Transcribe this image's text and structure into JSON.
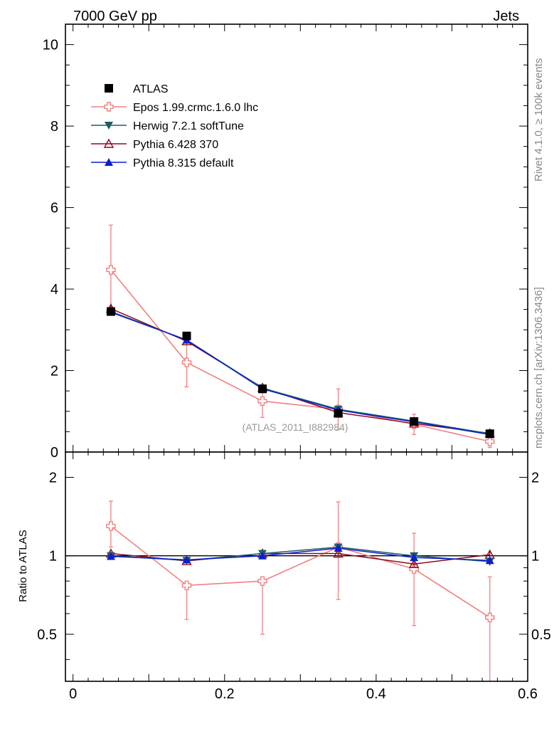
{
  "header": {
    "left": "7000 GeV pp",
    "right": "Jets"
  },
  "side_labels": {
    "rivet": "Rivet 4.1.0, ≥ 100k events",
    "source": "mcplots.cern.ch [arXiv:1306.3436]"
  },
  "analysis_label": "(ATLAS_2011_I882984)",
  "colors": {
    "atlas": "#000000",
    "epos": "#f28080",
    "herwig": "#1f5f63",
    "pythia6": "#8b0a22",
    "pythia8": "#0a1fd0"
  },
  "chart_data": [
    {
      "type": "line",
      "title": "",
      "xlabel": "",
      "ylabel": "",
      "xlim": [
        -0.01,
        0.6
      ],
      "ylim": [
        0,
        10.5
      ],
      "y_ticks": [
        0,
        2,
        4,
        6,
        8,
        10
      ],
      "y_tick_labels": [
        "0",
        "2",
        "4",
        "6",
        "8",
        "10"
      ],
      "legend_position": "top-left",
      "x": [
        0.05,
        0.15,
        0.25,
        0.35,
        0.45,
        0.55
      ],
      "series": [
        {
          "name": "ATLAS",
          "key": "atlas",
          "marker": "square",
          "values": [
            3.45,
            2.85,
            1.55,
            0.95,
            0.75,
            0.45
          ],
          "errors": [
            0.05,
            0.05,
            0.04,
            0.04,
            0.03,
            0.03
          ]
        },
        {
          "name": "Epos 1.99.crmc.1.6.0 lhc",
          "key": "epos",
          "marker": "cross",
          "values": [
            4.47,
            2.2,
            1.25,
            1.05,
            0.68,
            0.26
          ],
          "errors": [
            1.1,
            0.6,
            0.4,
            0.5,
            0.25,
            0.15
          ]
        },
        {
          "name": "Herwig 7.2.1 softTune",
          "key": "herwig",
          "marker": "triangle-down",
          "values": [
            3.45,
            2.75,
            1.57,
            1.05,
            0.76,
            0.45
          ],
          "errors": [
            0.07,
            0.05,
            0.04,
            0.04,
            0.03,
            0.03
          ]
        },
        {
          "name": "Pythia 6.428 370",
          "key": "pythia6",
          "marker": "triangle-open",
          "values": [
            3.52,
            2.72,
            1.58,
            0.97,
            0.7,
            0.46
          ],
          "errors": [
            0.07,
            0.05,
            0.04,
            0.04,
            0.03,
            0.03
          ]
        },
        {
          "name": "Pythia 8.315 default",
          "key": "pythia8",
          "marker": "triangle-up",
          "values": [
            3.43,
            2.75,
            1.55,
            1.03,
            0.74,
            0.43
          ],
          "errors": [
            0.07,
            0.05,
            0.04,
            0.04,
            0.03,
            0.03
          ]
        }
      ]
    },
    {
      "type": "line",
      "title": "",
      "xlabel": "",
      "ylabel": "Ratio to ATLAS",
      "xlim": [
        -0.01,
        0.6
      ],
      "ylim": [
        0.33,
        2.5
      ],
      "y_scale": "log",
      "y_ticks": [
        0.5,
        1,
        2
      ],
      "y_tick_labels": [
        "0.5",
        "1",
        "2"
      ],
      "x_ticks": [
        0,
        0.2,
        0.4,
        0.6
      ],
      "x_tick_labels": [
        "0",
        "0.2",
        "0.4",
        "0.6"
      ],
      "x": [
        0.05,
        0.15,
        0.25,
        0.35,
        0.45,
        0.55
      ],
      "reference_line": 1,
      "series": [
        {
          "name": "Epos 1.99.crmc.1.6.0 lhc",
          "key": "epos",
          "marker": "cross",
          "values": [
            1.3,
            0.77,
            0.8,
            1.08,
            0.89,
            0.58
          ],
          "errors_low": [
            0.22,
            0.2,
            0.3,
            0.4,
            0.35,
            0.25
          ],
          "errors_high": [
            0.32,
            0.0,
            0.0,
            0.53,
            0.33,
            0.25
          ]
        },
        {
          "name": "Herwig 7.2.1 softTune",
          "key": "herwig",
          "marker": "triangle-down",
          "values": [
            1.0,
            0.96,
            1.02,
            1.08,
            1.0,
            0.95
          ],
          "errors_low": [
            0.02,
            0.02,
            0.03,
            0.03,
            0.03,
            0.03
          ],
          "errors_high": [
            0.02,
            0.02,
            0.03,
            0.03,
            0.03,
            0.03
          ]
        },
        {
          "name": "Pythia 6.428 370",
          "key": "pythia6",
          "marker": "triangle-open",
          "values": [
            1.02,
            0.955,
            1.02,
            1.02,
            0.93,
            1.01
          ],
          "errors_low": [
            0.02,
            0.02,
            0.03,
            0.03,
            0.03,
            0.03
          ],
          "errors_high": [
            0.02,
            0.02,
            0.03,
            0.03,
            0.03,
            0.03
          ]
        },
        {
          "name": "Pythia 8.315 default",
          "key": "pythia8",
          "marker": "triangle-up",
          "values": [
            0.995,
            0.965,
            1.0,
            1.07,
            0.985,
            0.96
          ],
          "errors_low": [
            0.02,
            0.02,
            0.03,
            0.03,
            0.03,
            0.03
          ],
          "errors_high": [
            0.02,
            0.02,
            0.03,
            0.03,
            0.03,
            0.03
          ]
        }
      ]
    }
  ]
}
